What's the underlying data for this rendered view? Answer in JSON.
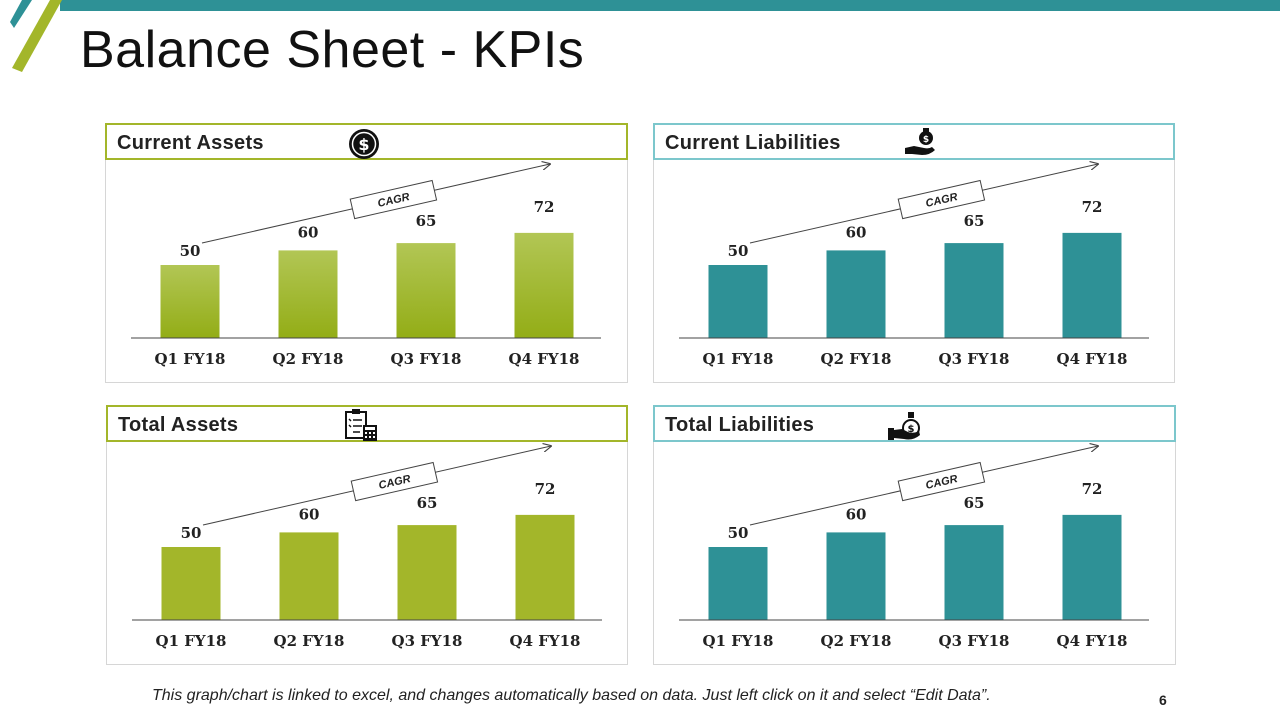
{
  "slide": {
    "title": "Balance Sheet - KPIs",
    "footnote": "This graph/chart is linked to excel, and changes automatically based on data. Just left click on it and select “Edit Data”.",
    "page_number": "6",
    "colors": {
      "accent": "#2e9196",
      "green": "#a3b62a",
      "teal": "#2e9196",
      "teal_light": "#7cc7cc"
    }
  },
  "chart_data": [
    {
      "type": "bar",
      "title": "Current Assets",
      "icon": "dollar-coin-icon",
      "categories": [
        "Q1 FY18",
        "Q2 FY18",
        "Q3 FY18",
        "Q4 FY18"
      ],
      "values": [
        50,
        60,
        65,
        72
      ],
      "annotation": "CAGR",
      "bar_color": "#a3b62a",
      "bar_style": "gradient",
      "ylim": [
        0,
        100
      ]
    },
    {
      "type": "bar",
      "title": "Current Liabilities",
      "icon": "hand-money-bag-icon",
      "categories": [
        "Q1 FY18",
        "Q2 FY18",
        "Q3 FY18",
        "Q4 FY18"
      ],
      "values": [
        50,
        60,
        65,
        72
      ],
      "annotation": "CAGR",
      "bar_color": "#2e9196",
      "bar_style": "solid",
      "ylim": [
        0,
        100
      ]
    },
    {
      "type": "bar",
      "title": "Total Assets",
      "icon": "clipboard-calculator-icon",
      "categories": [
        "Q1 FY18",
        "Q2 FY18",
        "Q3 FY18",
        "Q4 FY18"
      ],
      "values": [
        50,
        60,
        65,
        72
      ],
      "annotation": "CAGR",
      "bar_color": "#a3b62a",
      "bar_style": "solid",
      "ylim": [
        0,
        100
      ]
    },
    {
      "type": "bar",
      "title": "Total Liabilities",
      "icon": "hand-money-bag-icon",
      "categories": [
        "Q1 FY18",
        "Q2 FY18",
        "Q3 FY18",
        "Q4 FY18"
      ],
      "values": [
        50,
        60,
        65,
        72
      ],
      "annotation": "CAGR",
      "bar_color": "#2e9196",
      "bar_style": "solid",
      "ylim": [
        0,
        100
      ]
    }
  ]
}
